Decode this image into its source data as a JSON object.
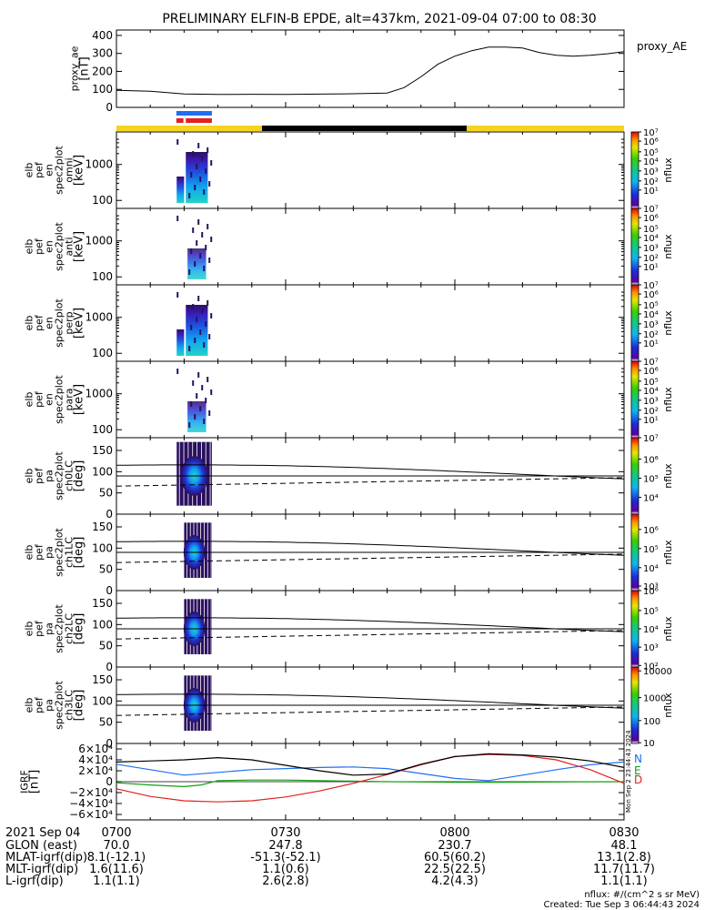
{
  "title": "PRELIMINARY ELFIN-B EPDE, alt=437km, 2021-09-04 07:00 to 08:30",
  "colors": {
    "black": "#000000",
    "yellow": "#f5d31e",
    "blue": "#1f6ff0",
    "red": "#e4201e",
    "green": "#12a012",
    "spec_dark": "#2a1060"
  },
  "chart_data": [
    {
      "type": "line",
      "title": "",
      "ylabel_lines": [
        "proxy_ae",
        "[nT]"
      ],
      "legend": "proxy_AE",
      "ylim": [
        0,
        430
      ],
      "yticks": [
        0,
        100,
        200,
        300,
        400
      ],
      "xlim_hours": [
        7.0,
        8.5
      ],
      "series": [
        {
          "name": "proxy_AE",
          "x": [
            7.0,
            7.1,
            7.2,
            7.3,
            7.4,
            7.5,
            7.6,
            7.7,
            7.75,
            7.8,
            7.85,
            7.9,
            7.95,
            8.0,
            8.05,
            8.1,
            8.15,
            8.2,
            8.25,
            8.3,
            8.35,
            8.4,
            8.45,
            8.5
          ],
          "y": [
            95,
            90,
            75,
            72,
            73,
            72,
            74,
            76,
            78,
            80,
            110,
            170,
            240,
            285,
            315,
            335,
            335,
            330,
            305,
            290,
            285,
            290,
            298,
            310
          ]
        }
      ]
    },
    {
      "type": "bar",
      "name": "segment bars",
      "xlim_hours": [
        7.0,
        8.5
      ],
      "bars": [
        {
          "color": "blue",
          "start": 7.177,
          "end": 7.282
        },
        {
          "color": "red",
          "start": 7.177,
          "end": 7.198
        },
        {
          "color": "red",
          "start": 7.205,
          "end": 7.282
        },
        {
          "color": "yellow",
          "start": 7.0,
          "end": 7.43
        },
        {
          "color": "black",
          "start": 7.43,
          "end": 8.035
        },
        {
          "color": "yellow",
          "start": 8.035,
          "end": 8.5
        }
      ]
    },
    {
      "type": "heatmap",
      "panels": [
        {
          "ylabel_lines": [
            "elb",
            "pef",
            "en",
            "spec2plot",
            "omni",
            "[keV]"
          ],
          "yscale": "log",
          "ylim": [
            60,
            8000
          ],
          "yticks": [
            100,
            1000
          ],
          "cbar_label": "nflux",
          "cbar_ticks": [
            "10⁷",
            "10⁶",
            "10⁵",
            "10⁴",
            "10³",
            "10²",
            "10¹"
          ],
          "cbar_pos": [
            1,
            0.88,
            0.74,
            0.62,
            0.49,
            0.36,
            0.24
          ]
        },
        {
          "ylabel_lines": [
            "elb",
            "pef",
            "en",
            "spec2plot",
            "anti",
            "[keV]"
          ],
          "yscale": "log",
          "ylim": [
            60,
            8000
          ],
          "yticks": [
            100,
            1000
          ],
          "cbar_label": "nflux",
          "cbar_ticks": [
            "10⁷",
            "10⁶",
            "10⁵",
            "10⁴",
            "10³",
            "10²",
            "10¹"
          ],
          "cbar_pos": [
            1,
            0.88,
            0.74,
            0.62,
            0.49,
            0.36,
            0.24
          ]
        },
        {
          "ylabel_lines": [
            "elb",
            "pef",
            "en",
            "spec2plot",
            "perp",
            "[keV]"
          ],
          "yscale": "log",
          "ylim": [
            60,
            8000
          ],
          "yticks": [
            100,
            1000
          ],
          "cbar_label": "nflux",
          "cbar_ticks": [
            "10⁷",
            "10⁶",
            "10⁵",
            "10⁴",
            "10³",
            "10²",
            "10¹"
          ],
          "cbar_pos": [
            1,
            0.88,
            0.74,
            0.62,
            0.49,
            0.36,
            0.24
          ]
        },
        {
          "ylabel_lines": [
            "elb",
            "pef",
            "en",
            "spec2plot",
            "para",
            "[keV]"
          ],
          "yscale": "log",
          "ylim": [
            60,
            8000
          ],
          "yticks": [
            100,
            1000
          ],
          "cbar_label": "nflux",
          "cbar_ticks": [
            "10⁷",
            "10⁶",
            "10⁵",
            "10⁴",
            "10³",
            "10²",
            "10¹"
          ],
          "cbar_pos": [
            1,
            0.88,
            0.74,
            0.62,
            0.49,
            0.36,
            0.24
          ]
        },
        {
          "ylabel_lines": [
            "elb",
            "pef",
            "pa",
            "spec2plot",
            "ch0LC",
            "[deg]"
          ],
          "yscale": "linear",
          "ylim": [
            0,
            180
          ],
          "yticks": [
            0,
            50,
            100,
            150
          ],
          "cbar_label": "nflux",
          "cbar_ticks": [
            "10⁷",
            "10⁶",
            "10⁵",
            "10⁴"
          ],
          "cbar_pos": [
            1,
            0.72,
            0.47,
            0.22
          ]
        },
        {
          "ylabel_lines": [
            "elb",
            "pef",
            "pa",
            "spec2plot",
            "ch1LC",
            "[deg]"
          ],
          "yscale": "linear",
          "ylim": [
            0,
            180
          ],
          "yticks": [
            0,
            50,
            100,
            150
          ],
          "cbar_label": "nflux",
          "cbar_ticks": [
            "10⁶",
            "10⁵",
            "10⁴",
            "10³"
          ],
          "cbar_pos": [
            0.8,
            0.55,
            0.3,
            0.06
          ]
        },
        {
          "ylabel_lines": [
            "elb",
            "pef",
            "pa",
            "spec2plot",
            "ch2LC",
            "[deg]"
          ],
          "yscale": "linear",
          "ylim": [
            0,
            180
          ],
          "yticks": [
            0,
            50,
            100,
            150
          ],
          "cbar_label": "nflux",
          "cbar_ticks": [
            "10⁶",
            "10⁵",
            "10⁴",
            "10³",
            "10²"
          ],
          "cbar_pos": [
            1,
            0.74,
            0.5,
            0.26,
            0.02
          ]
        },
        {
          "ylabel_lines": [
            "elb",
            "pef",
            "pa",
            "spec2plot",
            "ch3LC",
            "[deg]"
          ],
          "yscale": "linear",
          "ylim": [
            0,
            180
          ],
          "yticks": [
            0,
            50,
            100,
            150
          ],
          "cbar_label": "nflux",
          "cbar_ticks": [
            "10000",
            "1000",
            "100",
            "10"
          ],
          "cbar_pos": [
            0.95,
            0.6,
            0.3,
            0.01
          ]
        }
      ]
    },
    {
      "type": "line",
      "ylabel_lines": [
        "IGRF",
        "[nT]"
      ],
      "ylim": [
        -70000,
        70000
      ],
      "yticks": [
        "6×10⁴",
        "4×10⁴",
        "2×10⁴",
        "0",
        "−2×10⁴",
        "−4×10⁴",
        "−6×10⁴"
      ],
      "ytick_values": [
        60000,
        40000,
        20000,
        0,
        -20000,
        -40000,
        -60000
      ],
      "xlim_hours": [
        7.0,
        8.5
      ],
      "series": [
        {
          "name": "N",
          "color": "blue",
          "x": [
            7.0,
            7.1,
            7.2,
            7.3,
            7.4,
            7.5,
            7.6,
            7.7,
            7.8,
            7.9,
            8.0,
            8.1,
            8.2,
            8.3,
            8.4,
            8.5
          ],
          "y": [
            32000,
            22000,
            12000,
            17000,
            22000,
            24000,
            26000,
            27000,
            24000,
            15000,
            6000,
            2000,
            12000,
            22000,
            31000,
            36000
          ]
        },
        {
          "name": "E",
          "color": "green",
          "x": [
            7.0,
            7.1,
            7.2,
            7.25,
            7.3,
            7.4,
            7.5,
            7.6,
            7.7,
            7.8,
            7.9,
            8.0,
            8.1,
            8.2,
            8.3,
            8.4,
            8.5
          ],
          "y": [
            -2000,
            -6000,
            -9000,
            -6000,
            2000,
            3000,
            3000,
            2000,
            1000,
            0,
            -500,
            -1000,
            -1000,
            -800,
            -500,
            -200,
            0
          ]
        },
        {
          "name": "D",
          "color": "red",
          "x": [
            7.0,
            7.1,
            7.2,
            7.3,
            7.4,
            7.5,
            7.6,
            7.7,
            7.8,
            7.9,
            8.0,
            8.1,
            8.2,
            8.3,
            8.4,
            8.5
          ],
          "y": [
            -13000,
            -27000,
            -35000,
            -37000,
            -35000,
            -28000,
            -17000,
            -3000,
            13000,
            31000,
            46000,
            50000,
            48000,
            40000,
            22000,
            -3000
          ]
        },
        {
          "name": "total",
          "color": "black",
          "x": [
            7.0,
            7.1,
            7.2,
            7.3,
            7.4,
            7.5,
            7.6,
            7.7,
            7.8,
            7.9,
            8.0,
            8.1,
            8.2,
            8.3,
            8.4,
            8.5
          ],
          "y": [
            36000,
            38000,
            40000,
            44000,
            40000,
            30000,
            20000,
            12000,
            14000,
            32000,
            46000,
            51000,
            49000,
            45000,
            38000,
            26000
          ]
        }
      ],
      "legend_letters": [
        "N",
        "E",
        "D"
      ]
    }
  ],
  "time_axis": {
    "tick_labels": [
      "0700",
      "0730",
      "0800",
      "0830"
    ],
    "tick_hours": [
      7.0,
      7.5,
      8.0,
      8.5
    ],
    "minor_ticks": [
      7.1,
      7.2,
      7.3,
      7.4,
      7.6,
      7.7,
      7.8,
      7.9,
      8.1,
      8.2,
      8.3,
      8.4
    ]
  },
  "annotation_rows": [
    {
      "label": "2021 Sep 04",
      "values": [
        "0700",
        "0730",
        "0800",
        "0830"
      ]
    },
    {
      "label": "GLON (east)",
      "values": [
        "70.0",
        "247.8",
        "230.7",
        "48.1"
      ]
    },
    {
      "label": "MLAT-igrf(dip)",
      "values": [
        "8.1(-12.1)",
        "-51.3(-52.1)",
        "60.5(60.2)",
        "13.1(2.8)"
      ]
    },
    {
      "label": "MLT-igrf(dip)",
      "values": [
        "1.6(11.6)",
        "1.1(0.6)",
        "22.5(22.5)",
        "11.7(11.7)"
      ]
    },
    {
      "label": "L-igrf(dip)",
      "values": [
        "1.1(1.1)",
        "2.6(2.8)",
        "4.2(4.3)",
        "1.1(1.1)"
      ]
    }
  ],
  "footer": {
    "units": "nflux: #/(cm^2 s sr MeV)",
    "created": "Created: Tue Sep  3 06:44:43 2024",
    "side_stamp": "Mon Sep  2 23:44:43 2024"
  }
}
